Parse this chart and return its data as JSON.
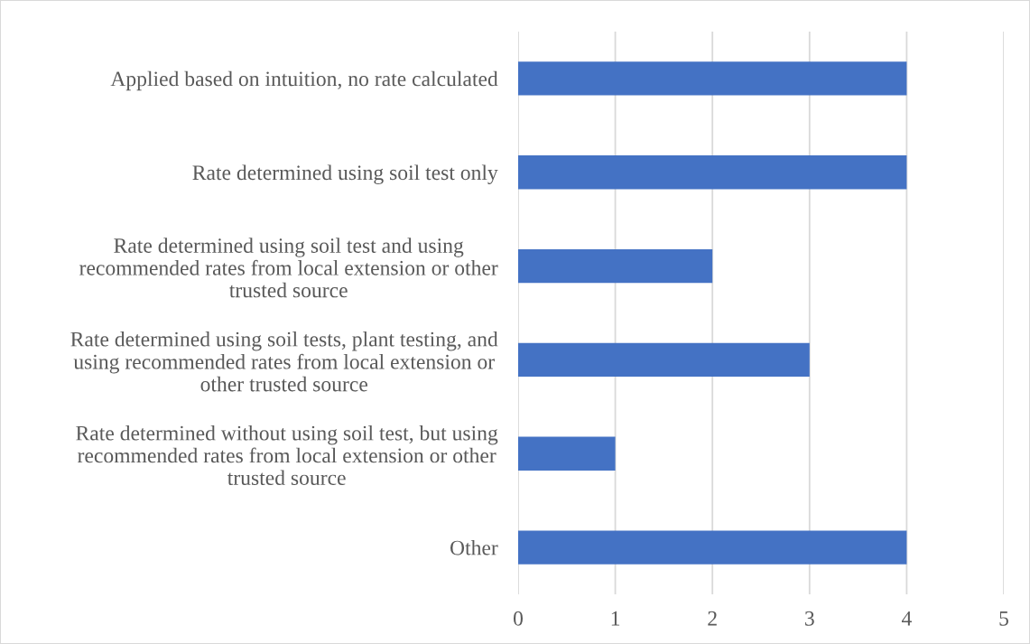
{
  "chart_data": {
    "type": "bar",
    "orientation": "horizontal",
    "categories": [
      "Applied based on intuition, no rate calculated",
      "Rate determined using soil test only",
      "Rate determined using soil test and using recommended rates from local extension or other trusted source",
      "Rate determined using soil tests, plant testing, and using recommended rates from local extension or other trusted source",
      "Rate determined without using soil test, but using recommended rates from local extension or other trusted source",
      "Other"
    ],
    "values": [
      4,
      4,
      2,
      3,
      1,
      4
    ],
    "color": "#4472c4",
    "xlim": [
      0,
      5
    ],
    "xticks": [
      0,
      1,
      2,
      3,
      4,
      5
    ],
    "grid": "x"
  }
}
